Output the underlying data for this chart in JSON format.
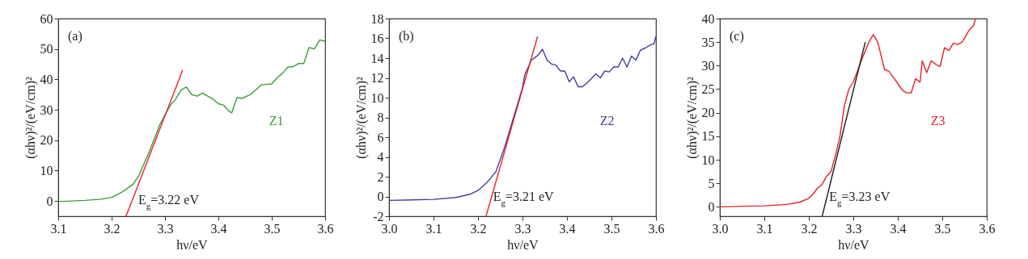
{
  "chart_data": [
    {
      "type": "line",
      "xlabel": "hν/eV",
      "ylabel": "(αhν)²/(eV/cm)²",
      "xlim": [
        3.1,
        3.6
      ],
      "xticks": [
        3.1,
        3.2,
        3.3,
        3.4,
        3.5,
        3.6
      ],
      "ylim": [
        -5,
        60
      ],
      "yticks": [
        0,
        10,
        20,
        30,
        40,
        50,
        60
      ],
      "legend": "right",
      "annotations": [
        "(a)",
        "E$_{g}$=3.22 eV"
      ],
      "series": [
        {
          "name": "Z1",
          "color": "#3a9e3a",
          "x": [
            3.1,
            3.15,
            3.18,
            3.2,
            3.22,
            3.24,
            3.25,
            3.27,
            3.29,
            3.31,
            3.32,
            3.33,
            3.34,
            3.35,
            3.36,
            3.37,
            3.38,
            3.39,
            3.4,
            3.41,
            3.42,
            3.425,
            3.435,
            3.445,
            3.46,
            3.47,
            3.48,
            3.5,
            3.51,
            3.52,
            3.53,
            3.54,
            3.55,
            3.56,
            3.57,
            3.58,
            3.59,
            3.6
          ],
          "values": [
            -0.2,
            0.2,
            0.6,
            1.2,
            3,
            5.5,
            8,
            16,
            25,
            31.5,
            33.5,
            36.5,
            37.5,
            35,
            34.5,
            35.5,
            34.5,
            33.5,
            32,
            31.5,
            29.5,
            29,
            34,
            33.8,
            35,
            36.5,
            38.2,
            38.5,
            40.5,
            42,
            44,
            44.2,
            45.2,
            45.2,
            50.5,
            50,
            53,
            52.5
          ]
        },
        {
          "type": "line",
          "color": "#e8202a",
          "x": [
            3.227,
            3.333
          ],
          "values": [
            -5,
            43
          ]
        }
      ]
    },
    {
      "type": "line",
      "xlabel": "hν/eV",
      "ylabel": "(αhν)²/(eV/cm)²",
      "xlim": [
        3.0,
        3.6
      ],
      "xticks": [
        {
          "value": 3,
          "label": "3.0"
        },
        3.1,
        3.2,
        3.3,
        3.4,
        3.5,
        3.6
      ],
      "ylim": [
        -2,
        18
      ],
      "yticks": [
        -2,
        0,
        2,
        4,
        6,
        8,
        10,
        12,
        14,
        16,
        18
      ],
      "legend": "right",
      "annotations": [
        "(b)",
        "E$_{g}$=3.21 eV"
      ],
      "series": [
        {
          "name": "Z2",
          "color": "#3f3d99",
          "x": [
            3.0,
            3.1,
            3.15,
            3.18,
            3.2,
            3.22,
            3.24,
            3.26,
            3.28,
            3.3,
            3.305,
            3.32,
            3.335,
            3.345,
            3.355,
            3.365,
            3.375,
            3.385,
            3.395,
            3.405,
            3.415,
            3.425,
            3.435,
            3.45,
            3.465,
            3.475,
            3.485,
            3.495,
            3.505,
            3.515,
            3.525,
            3.535,
            3.545,
            3.555,
            3.565,
            3.575,
            3.59,
            3.595,
            3.6
          ],
          "values": [
            -0.4,
            -0.3,
            -0.1,
            0.2,
            0.6,
            1.4,
            2.5,
            5,
            8,
            11,
            12.3,
            13.8,
            14.3,
            14.9,
            13.8,
            13.4,
            13.3,
            12.7,
            12.7,
            11.6,
            12.1,
            11.1,
            11.1,
            11.7,
            12.4,
            12,
            12.7,
            12.6,
            13.1,
            13.1,
            14,
            13.1,
            14.2,
            13.8,
            14.8,
            15,
            15.4,
            15.4,
            16.2
          ]
        },
        {
          "type": "line",
          "color": "#e8202a",
          "x": [
            3.218,
            3.334
          ],
          "values": [
            -2,
            16.2
          ]
        }
      ]
    },
    {
      "type": "line",
      "xlabel": "hν/eV",
      "ylabel": "(αhν)²/(eV/cm)²",
      "xlim": [
        3.0,
        3.6
      ],
      "xticks": [
        {
          "value": 3,
          "label": "3.0"
        },
        3.1,
        3.2,
        3.3,
        3.4,
        3.5,
        3.6
      ],
      "ylim": [
        -2,
        40
      ],
      "yticks": [
        0,
        5,
        10,
        15,
        20,
        25,
        30,
        35,
        40
      ],
      "legend": "right",
      "annotations": [
        "(c)",
        "E$_{g}$=3.23 eV"
      ],
      "series": [
        {
          "name": "Z3",
          "color": "#e8202a",
          "x": [
            3.0,
            3.1,
            3.15,
            3.18,
            3.2,
            3.21,
            3.22,
            3.23,
            3.24,
            3.25,
            3.26,
            3.27,
            3.28,
            3.29,
            3.3,
            3.31,
            3.32,
            3.335,
            3.345,
            3.355,
            3.37,
            3.38,
            3.39,
            3.4,
            3.41,
            3.42,
            3.43,
            3.44,
            3.45,
            3.455,
            3.465,
            3.475,
            3.485,
            3.495,
            3.505,
            3.515,
            3.525,
            3.535,
            3.545,
            3.56,
            3.57,
            3.575
          ],
          "values": [
            0,
            0.2,
            0.5,
            1,
            1.8,
            2.8,
            4,
            4.8,
            6.5,
            7.5,
            11,
            15,
            21.5,
            25,
            26.5,
            29,
            31.5,
            35,
            36.6,
            35,
            29.2,
            28.8,
            27.5,
            26.2,
            24.8,
            24.2,
            24.2,
            27.2,
            26.5,
            31,
            28.5,
            31,
            30.3,
            29.8,
            33.8,
            33.2,
            34.8,
            34.5,
            35,
            37.5,
            38.5,
            40
          ]
        },
        {
          "type": "line",
          "color": "#1a1a1a",
          "x": [
            3.23,
            3.327
          ],
          "values": [
            -2,
            35
          ]
        }
      ]
    }
  ]
}
